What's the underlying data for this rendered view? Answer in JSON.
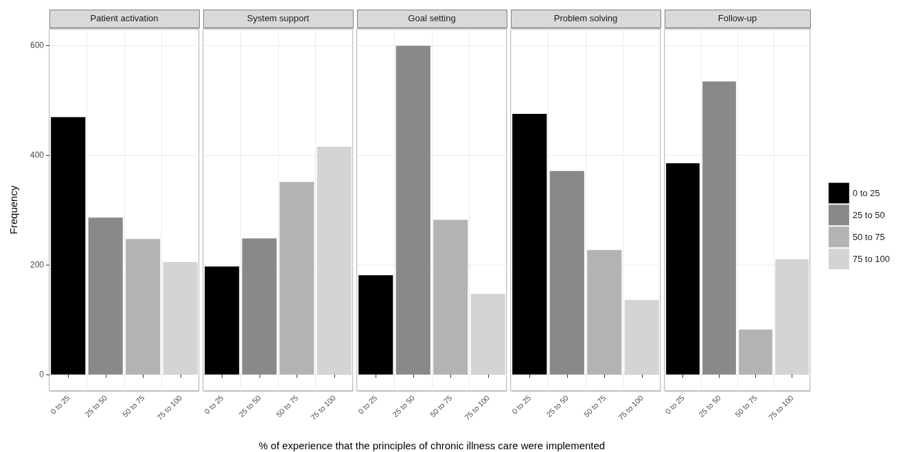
{
  "chart_data": [
    {
      "type": "bar",
      "title": "Patient activation",
      "ylabel": "Frequency",
      "categories": [
        "0 to 25",
        "25 to 50",
        "50 to 75",
        "75 to 100"
      ],
      "values": [
        469,
        286,
        247,
        205
      ],
      "colors": [
        "#000000",
        "#898989",
        "#b3b3b3",
        "#d4d4d4"
      ],
      "ylim": [
        -30,
        630
      ],
      "yticks": [
        0,
        200,
        400,
        600
      ],
      "grid": true
    },
    {
      "type": "bar",
      "title": "System support",
      "categories": [
        "0 to 25",
        "25 to 50",
        "50 to 75",
        "75 to 100"
      ],
      "values": [
        197,
        248,
        351,
        415
      ],
      "colors": [
        "#000000",
        "#898989",
        "#b3b3b3",
        "#d4d4d4"
      ],
      "ylim": [
        -30,
        630
      ],
      "yticks": [
        0,
        200,
        400,
        600
      ],
      "grid": true,
      "tick_labels": "x"
    },
    {
      "type": "bar",
      "title": "Goal setting",
      "xlabel": "% of experience that the principles of chronic illness care were implemented",
      "categories": [
        "0 to 25",
        "25 to 50",
        "50 to 75",
        "75 to 100"
      ],
      "values": [
        181,
        599,
        282,
        147
      ],
      "colors": [
        "#000000",
        "#898989",
        "#b3b3b3",
        "#d4d4d4"
      ],
      "ylim": [
        -30,
        630
      ],
      "yticks": [
        0,
        200,
        400,
        600
      ],
      "grid": true,
      "tick_labels": "x"
    },
    {
      "type": "bar",
      "title": "Problem solving",
      "categories": [
        "0 to 25",
        "25 to 50",
        "50 to 75",
        "75 to 100"
      ],
      "values": [
        475,
        371,
        227,
        136
      ],
      "colors": [
        "#000000",
        "#898989",
        "#b3b3b3",
        "#d4d4d4"
      ],
      "ylim": [
        -30,
        630
      ],
      "yticks": [
        0,
        200,
        400,
        600
      ],
      "grid": true,
      "tick_labels": "x"
    },
    {
      "type": "bar",
      "title": "Follow-up",
      "categories": [
        "0 to 25",
        "25 to 50",
        "50 to 75",
        "75 to 100"
      ],
      "series": [
        {
          "name": "0 to 25",
          "color": "#000000",
          "values": [
            385,
            null,
            null,
            null
          ]
        },
        {
          "name": "25 to 50",
          "color": "#898989",
          "values": [
            null,
            534,
            null,
            null
          ]
        },
        {
          "name": "50 to 75",
          "color": "#b3b3b3",
          "values": [
            null,
            null,
            82,
            null
          ]
        },
        {
          "name": "75 to 100",
          "color": "#d4d4d4",
          "values": [
            null,
            null,
            null,
            210
          ]
        }
      ],
      "ylim": [
        -30,
        630
      ],
      "yticks": [
        0,
        200,
        400,
        600
      ],
      "grid": true,
      "tick_labels": "x",
      "legend": "right"
    }
  ]
}
